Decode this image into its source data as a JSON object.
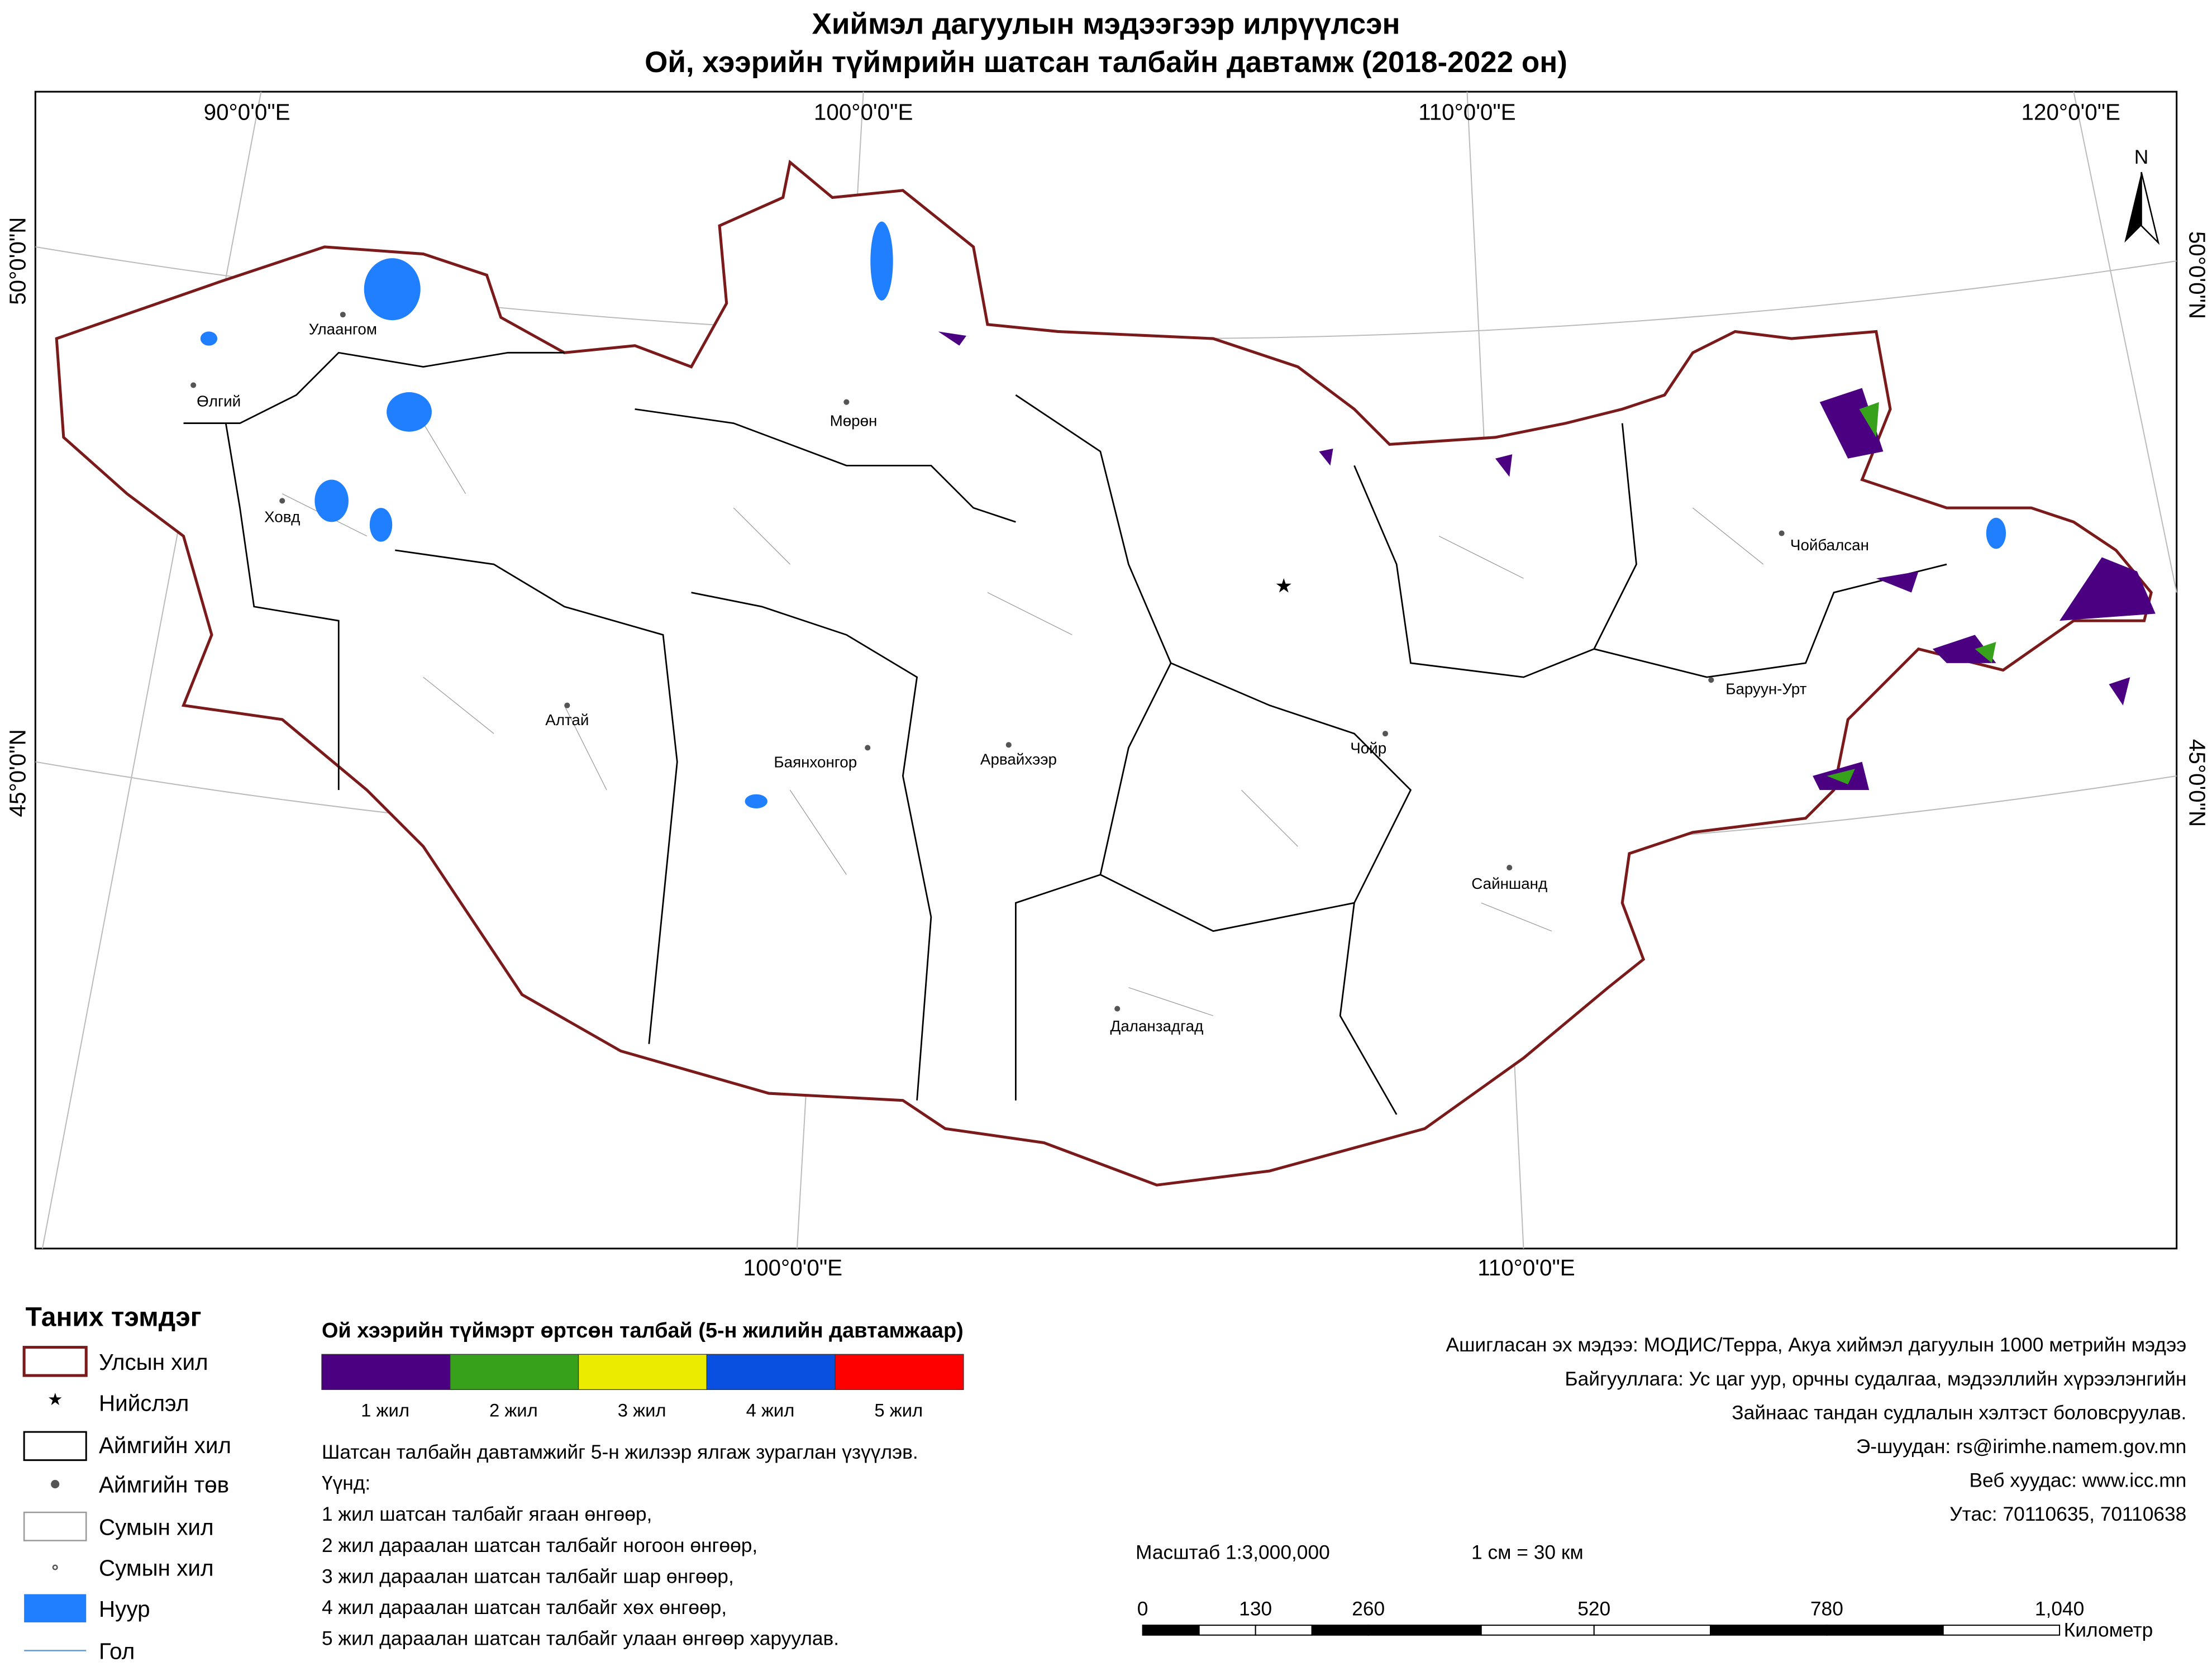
{
  "header": {
    "title": [
      "Хиймэл дагуулын мэдээгээр илрүүлсэн",
      "Ой, хээрийн түймрийн шатсан талбайн давтамж (2018-2022 он)"
    ]
  },
  "map": {
    "graticule": {
      "top": [
        "90°0'0\"E",
        "100°0'0\"E",
        "110°0'0\"E",
        "120°0'0\"E"
      ],
      "bottom": [
        "100°0'0\"E",
        "110°0'0\"E"
      ],
      "left": [
        "50°0'0\"N",
        "45°0'0\"N"
      ],
      "right": [
        "50°0'0\"N",
        "45°0'0\"N"
      ]
    },
    "north": "N",
    "cities": [
      "Улаангом",
      "Өлгий",
      "Мөрөн",
      "Ховд",
      "Алтай",
      "Баянхонгор",
      "Арвайхээр",
      "Чойр",
      "Сайншанд",
      "Даланзадгад",
      "Чойбалсан",
      "Баруун-Урт"
    ]
  },
  "legend": {
    "title": "Таних тэмдэг",
    "items": [
      "Улсын хил",
      "Нийслэл",
      "Аймгийн хил",
      "Аймгийн төв",
      "Сумын хил",
      "Сумын хил",
      "Нуур",
      "Гол"
    ]
  },
  "fire_legend": {
    "title": "Ой хээрийн түймэрт өртсөн талбай (5-н жилийн давтамжаар)",
    "classes": [
      {
        "label": "1 жил",
        "color": "#4b0082"
      },
      {
        "label": "2 жил",
        "color": "#37a11c"
      },
      {
        "label": "3 жил",
        "color": "#ebeb00"
      },
      {
        "label": "4 жил",
        "color": "#0a50e0"
      },
      {
        "label": "5 жил",
        "color": "#ff0000"
      }
    ],
    "notes": [
      "Шатсан талбайн давтамжийг 5-н жилээр ялгаж зураглан үзүүлэв.",
      "Үүнд:",
      "1 жил шатсан талбайг ягаан өнгөөр,",
      "2 жил дараалан шатсан талбайг ногоон өнгөөр,",
      "3 жил дараалан шатсан талбайг шар өнгөөр,",
      "4 жил дараалан шатсан талбайг хөх өнгөөр,",
      "5 жил дараалан шатсан талбайг улаан өнгөөр харуулав."
    ]
  },
  "source": [
    "Ашигласан эх мэдээ: МОДИС/Терра, Акуа хиймэл дагуулын 1000 метрийн мэдээ",
    "Байгууллага: Ус цаг уур, орчны судалгаа, мэдээллийн хүрээлэнгийн",
    "Зайнаас тандан судлалын хэлтэст боловсруулав.",
    "Э-шуудан: rs@irimhe.namem.gov.mn",
    "Веб хуудас: www.icc.mn",
    "Утас: 70110635, 70110638"
  ],
  "scale": {
    "text": "Масштаб 1:3,000,000",
    "ratio": "1 см = 30 км",
    "ticks": [
      "0",
      "130",
      "260",
      "520",
      "780",
      "1,040"
    ],
    "unit": "Километр"
  }
}
